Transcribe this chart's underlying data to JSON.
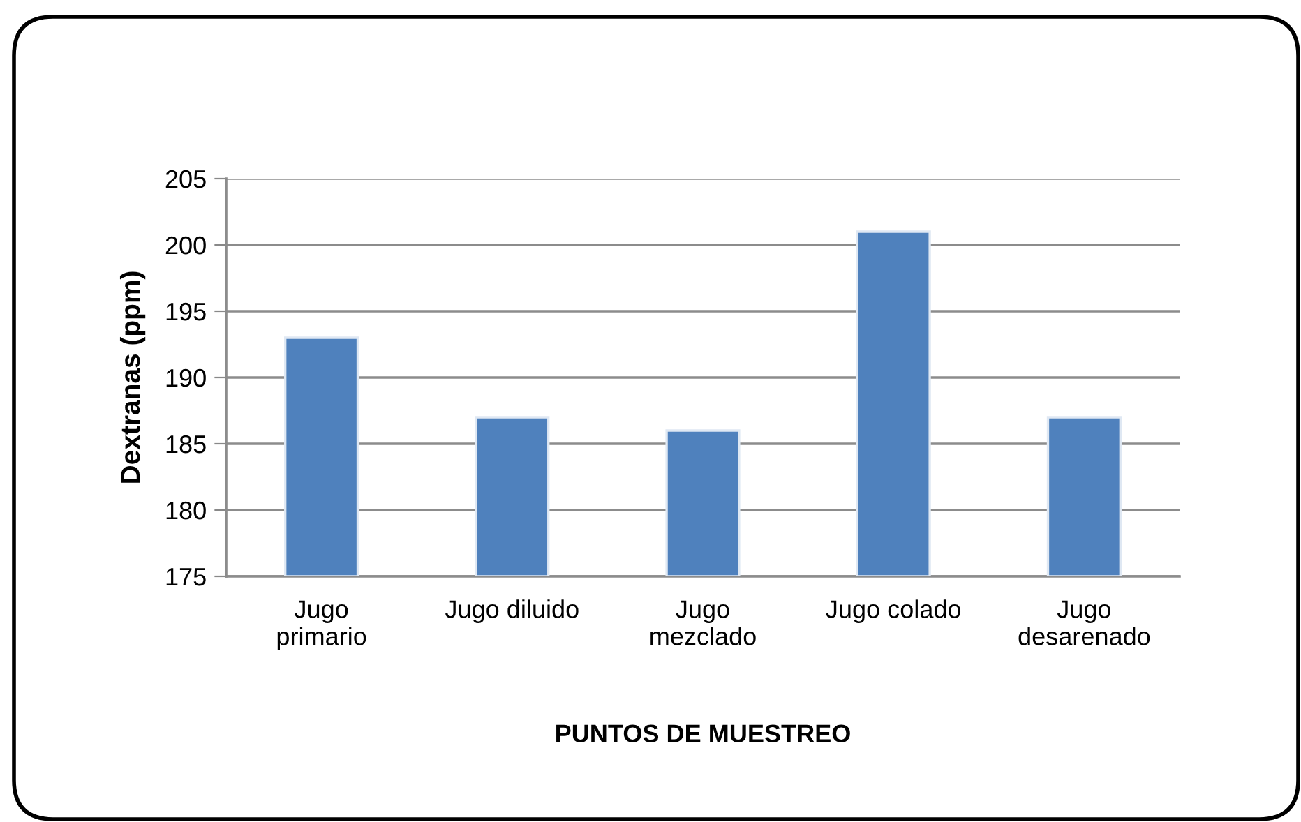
{
  "chart_data": {
    "type": "bar",
    "xlabel": "PUNTOS DE MUESTREO",
    "ylabel": "Dextranas (ppm)",
    "categories": [
      "Jugo\nprimario",
      "Jugo diluido",
      "Jugo\nmezclado",
      "Jugo colado",
      "Jugo\ndesarenado"
    ],
    "values": [
      193,
      187,
      186,
      201,
      187
    ],
    "color": "#4f81bd",
    "ylim": [
      175,
      205
    ],
    "yticks": [
      175,
      180,
      185,
      190,
      195,
      200,
      205
    ],
    "grid": "y",
    "legend": false
  }
}
